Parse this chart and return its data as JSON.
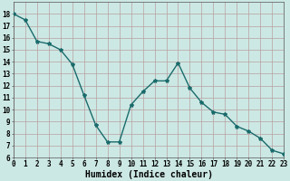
{
  "x": [
    0,
    1,
    2,
    3,
    4,
    5,
    6,
    7,
    8,
    9,
    10,
    11,
    12,
    13,
    14,
    15,
    16,
    17,
    18,
    19,
    20,
    21,
    22,
    23
  ],
  "y": [
    18.0,
    17.5,
    15.7,
    15.5,
    15.0,
    13.8,
    11.2,
    8.7,
    7.3,
    7.3,
    10.4,
    11.5,
    12.4,
    12.4,
    13.9,
    11.8,
    10.6,
    9.8,
    9.6,
    8.6,
    8.2,
    7.6,
    6.6,
    6.3
  ],
  "xlabel": "Humidex (Indice chaleur)",
  "ylim": [
    6,
    19
  ],
  "xlim": [
    0,
    23
  ],
  "yticks": [
    6,
    7,
    8,
    9,
    10,
    11,
    12,
    13,
    14,
    15,
    16,
    17,
    18
  ],
  "xticks": [
    0,
    1,
    2,
    3,
    4,
    5,
    6,
    7,
    8,
    9,
    10,
    11,
    12,
    13,
    14,
    15,
    16,
    17,
    18,
    19,
    20,
    21,
    22,
    23
  ],
  "xtick_labels": [
    "0",
    "1",
    "2",
    "3",
    "4",
    "5",
    "6",
    "7",
    "8",
    "9",
    "10",
    "11",
    "12",
    "13",
    "14",
    "15",
    "16",
    "17",
    "18",
    "19",
    "20",
    "21",
    "22",
    "23"
  ],
  "line_color": "#1a6b6b",
  "marker": "*",
  "bg_color": "#cce8e4",
  "grid_color": "#b8a0a0",
  "label_fontsize": 7,
  "tick_fontsize": 5.5,
  "marker_size": 3.0,
  "line_width": 1.0
}
